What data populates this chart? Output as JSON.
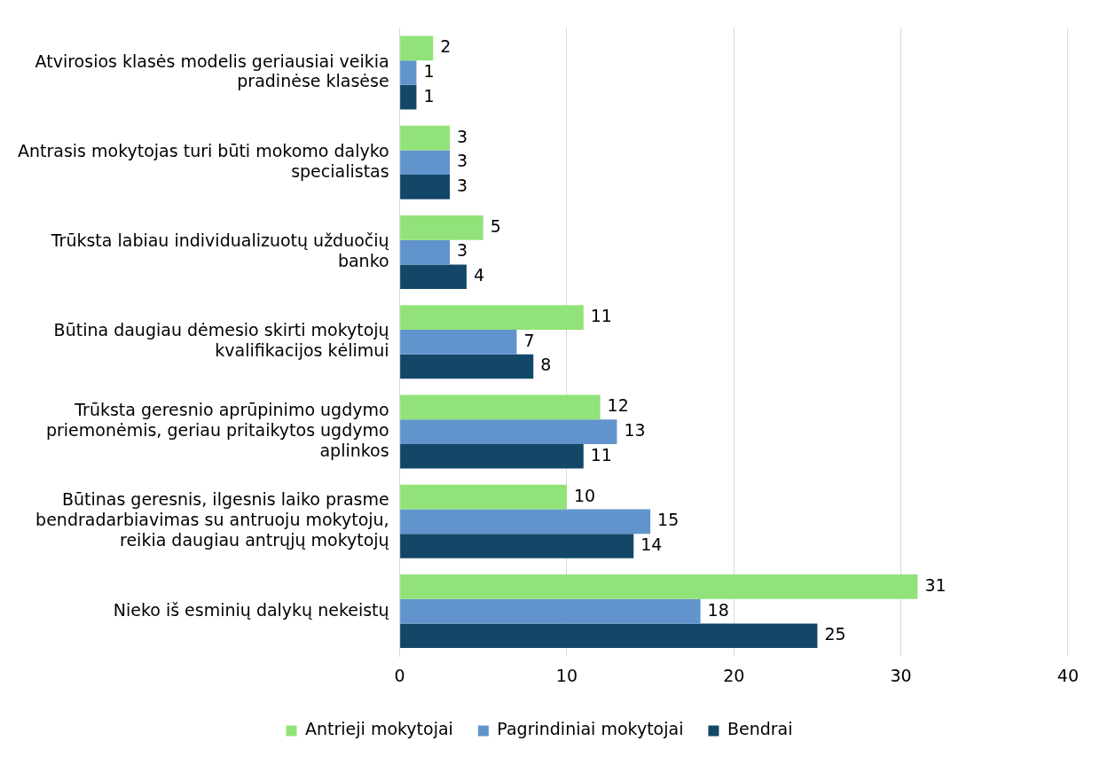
{
  "chart_data": {
    "type": "bar",
    "orientation": "horizontal",
    "categories": [
      "Atvirosios klasės modelis geriausiai veikia pradinėse klasėse",
      "Antrasis mokytojas turi būti mokomo dalyko specialistas",
      "Trūksta labiau individualizuotų užduočių banko",
      "Būtina daugiau dėmesio skirti mokytojų kvalifikacijos kėlimui",
      "Trūksta geresnio aprūpinimo ugdymo priemonėmis, geriau pritaikytos ugdymo aplinkos",
      "Būtinas geresnis, ilgesnis laiko prasme bendradarbiavimas su antruoju mokytoju, reikia daugiau antrųjų mokytojų",
      "Nieko iš esminių dalykų nekeistų"
    ],
    "series": [
      {
        "name": "Antrieji mokytojai",
        "color": "#92e27a",
        "values": [
          2,
          3,
          5,
          11,
          12,
          10,
          31
        ]
      },
      {
        "name": "Pagrindiniai mokytojai",
        "color": "#6194cc",
        "values": [
          1,
          3,
          3,
          7,
          13,
          15,
          18
        ]
      },
      {
        "name": "Bendrai",
        "color": "#134768",
        "values": [
          1,
          3,
          4,
          8,
          11,
          14,
          25
        ]
      }
    ],
    "xlim": [
      0,
      40
    ],
    "xticks": [
      0,
      10,
      20,
      30,
      40
    ],
    "grid": "x",
    "legend": "bottom",
    "data_labels": true
  }
}
